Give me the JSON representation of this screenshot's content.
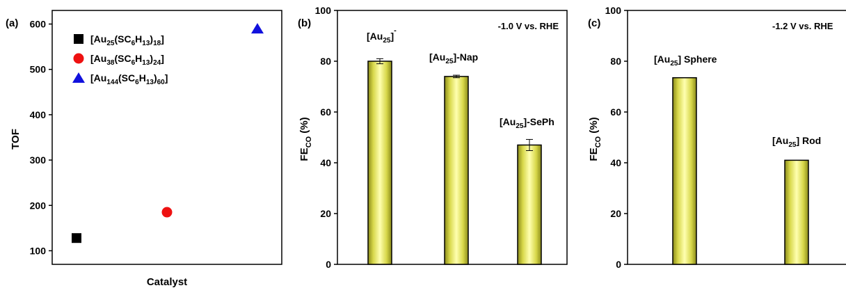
{
  "chart_data": [
    {
      "type": "scatter",
      "panel_label": "(a)",
      "xlabel": "Catalyst",
      "ylabel": "TOF",
      "ylim": [
        70,
        630
      ],
      "yticks": [
        100,
        200,
        300,
        400,
        500,
        600
      ],
      "legend_position": "top-left",
      "series": [
        {
          "name": "[Au25(SC6H13)18]",
          "name_parts": {
            "pre": "[Au",
            "s1": "25",
            "m1": "(SC",
            "s2": "6",
            "m2": "H",
            "s3": "13",
            "m3": ")",
            "s4": "18",
            "post": "]"
          },
          "marker": "square",
          "color": "#000000",
          "x": 1,
          "y": 128
        },
        {
          "name": "[Au38(SC6H13)24]",
          "name_parts": {
            "pre": "[Au",
            "s1": "38",
            "m1": "(SC",
            "s2": "6",
            "m2": "H",
            "s3": "13",
            "m3": ")",
            "s4": "24",
            "post": "]"
          },
          "marker": "circle",
          "color": "#ee1111",
          "x": 2,
          "y": 185
        },
        {
          "name": "[Au144(SC6H13)60]",
          "name_parts": {
            "pre": "[Au",
            "s1": "144",
            "m1": "(SC",
            "s2": "6",
            "m2": "H",
            "s3": "13",
            "m3": ")",
            "s4": "60",
            "post": "]"
          },
          "marker": "triangle",
          "color": "#1111dd",
          "x": 3,
          "y": 590
        }
      ]
    },
    {
      "type": "bar",
      "panel_label": "(b)",
      "annotation": "-1.0 V vs. RHE",
      "ylabel": {
        "main": "FE",
        "sub": "CO",
        "rest": " (%)"
      },
      "ylim": [
        0,
        100
      ],
      "yticks": [
        0,
        20,
        40,
        60,
        80,
        100
      ],
      "bar_color": "#e8e860",
      "categories": [
        {
          "label_parts": {
            "pre": "[Au",
            "sub": "25",
            "post": "]",
            "sup": "-"
          },
          "value": 80,
          "error": 1
        },
        {
          "label_parts": {
            "pre": "[Au",
            "sub": "25",
            "post": "]-Nap",
            "sup": ""
          },
          "value": 74,
          "error": 0.5
        },
        {
          "label_parts": {
            "pre": "[Au",
            "sub": "25",
            "post": "]-SePh",
            "sup": ""
          },
          "value": 47,
          "error": 2.2
        }
      ]
    },
    {
      "type": "bar",
      "panel_label": "(c)",
      "annotation": "-1.2 V vs. RHE",
      "ylabel": {
        "main": "FE",
        "sub": "CO",
        "rest": " (%)"
      },
      "ylim": [
        0,
        100
      ],
      "yticks": [
        0,
        20,
        40,
        60,
        80,
        100
      ],
      "bar_color": "#e8e860",
      "categories": [
        {
          "label_parts": {
            "pre": "[Au",
            "sub": "25",
            "post": "] Sphere",
            "sup": ""
          },
          "value": 73.5,
          "error": 0
        },
        {
          "label_parts": {
            "pre": "[Au",
            "sub": "25",
            "post": "] Rod",
            "sup": ""
          },
          "value": 41,
          "error": 0
        }
      ]
    }
  ]
}
